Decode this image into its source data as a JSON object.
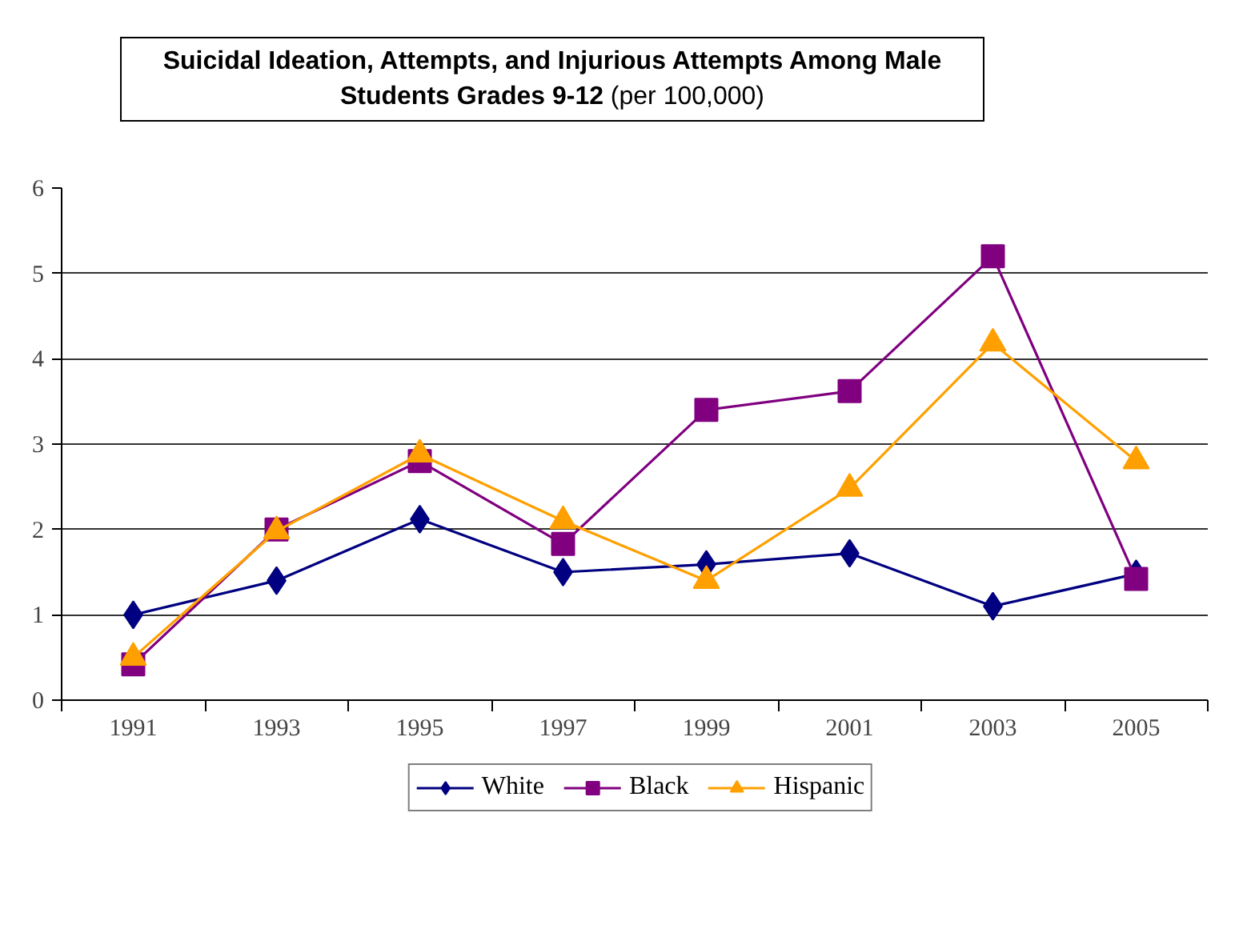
{
  "chart_data": {
    "type": "line",
    "title": "Suicidal Ideation, Attempts, and Injurious Attempts Among Male Students Grades 9-12",
    "subtitle": "(per 100,000)",
    "categories": [
      "1991",
      "1993",
      "1995",
      "1997",
      "1999",
      "2001",
      "2003",
      "2005"
    ],
    "ylim": [
      0,
      6
    ],
    "yticks": [
      0,
      1,
      2,
      3,
      4,
      5,
      6
    ],
    "grid": "y",
    "legend": "bottom",
    "line_style": "solid",
    "series": [
      {
        "name": "White",
        "color": "#000080",
        "marker": "diamond",
        "values": [
          1.0,
          1.4,
          2.12,
          1.5,
          1.59,
          1.72,
          1.1,
          1.48
        ]
      },
      {
        "name": "Black",
        "color": "#800080",
        "marker": "square",
        "values": [
          0.42,
          2.0,
          2.8,
          1.83,
          3.4,
          3.62,
          5.2,
          1.42
        ]
      },
      {
        "name": "Hispanic",
        "color": "#ffa000",
        "marker": "triangle",
        "values": [
          0.5,
          1.98,
          2.88,
          2.1,
          1.4,
          2.48,
          4.18,
          2.8
        ]
      }
    ]
  }
}
